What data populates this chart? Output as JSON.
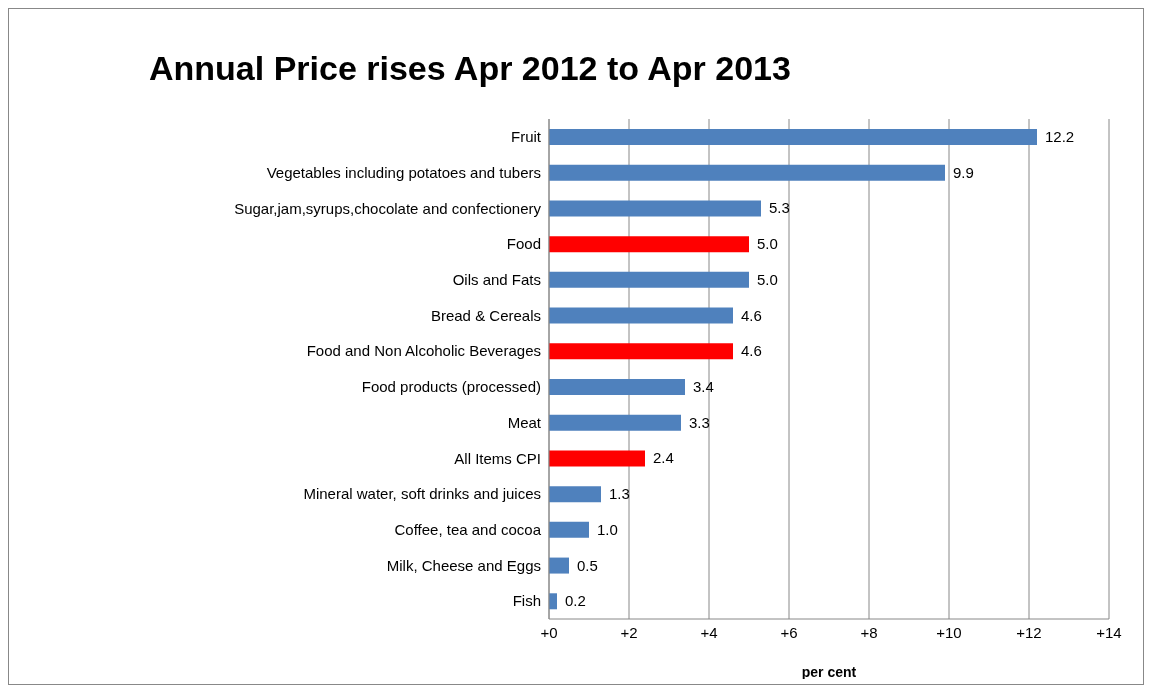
{
  "chart_data": {
    "type": "bar",
    "orientation": "horizontal",
    "title": "Annual Price rises Apr 2012 to Apr 2013",
    "xlabel": "per cent",
    "categories": [
      "Fruit",
      "Vegetables including potatoes and tubers",
      "Sugar,jam,syrups,chocolate and confectionery",
      "Food",
      "Oils and Fats",
      "Bread & Cereals",
      "Food and Non Alcoholic Beverages",
      "Food products (processed)",
      "Meat",
      "All Items CPI",
      "Mineral water, soft drinks and juices",
      "Coffee, tea and cocoa",
      "Milk, Cheese and Eggs",
      "Fish"
    ],
    "values": [
      12.2,
      9.9,
      5.3,
      5.0,
      5.0,
      4.6,
      4.6,
      3.4,
      3.3,
      2.4,
      1.3,
      1.0,
      0.5,
      0.2
    ],
    "value_labels": [
      "12.2",
      "9.9",
      "5.3",
      "5.0",
      "5.0",
      "4.6",
      "4.6",
      "3.4",
      "3.3",
      "2.4",
      "1.3",
      "1.0",
      "0.5",
      "0.2"
    ],
    "colors": [
      "#4f81bd",
      "#4f81bd",
      "#4f81bd",
      "#ff0000",
      "#4f81bd",
      "#4f81bd",
      "#ff0000",
      "#4f81bd",
      "#4f81bd",
      "#ff0000",
      "#4f81bd",
      "#4f81bd",
      "#4f81bd",
      "#4f81bd"
    ],
    "xlim": [
      0,
      14
    ],
    "xticks": [
      {
        "value": 0,
        "label": "+0"
      },
      {
        "value": 2,
        "label": "+2"
      },
      {
        "value": 4,
        "label": "+4"
      },
      {
        "value": 6,
        "label": "+6"
      },
      {
        "value": 8,
        "label": "+8"
      },
      {
        "value": 10,
        "label": "+10"
      },
      {
        "value": 12,
        "label": "+12"
      },
      {
        "value": 14,
        "label": "+14"
      }
    ],
    "grid": "x",
    "legend": false
  }
}
